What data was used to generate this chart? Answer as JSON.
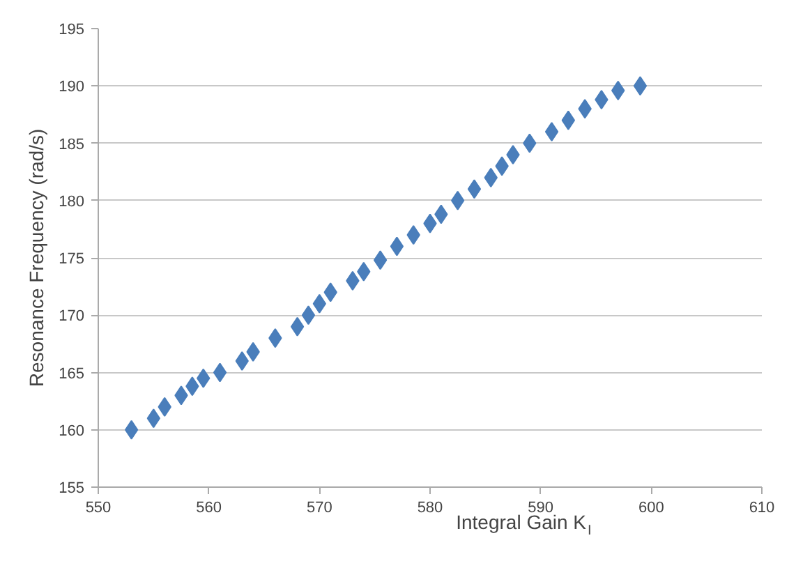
{
  "chart_data": {
    "type": "scatter",
    "xlabel": "Integral Gain K$_{I}$",
    "ylabel": "Resonance Frequency (rad/s)",
    "x": [
      553,
      555,
      556,
      557.5,
      558.5,
      559.5,
      561,
      563,
      564,
      566,
      568,
      569,
      570,
      571,
      573,
      574,
      575.5,
      577,
      578.5,
      580,
      581,
      582.5,
      584,
      585.5,
      586.5,
      587.5,
      589,
      591,
      592.5,
      594,
      595.5,
      597,
      599
    ],
    "series": [
      {
        "color": "#4a7ebb",
        "values": [
          160,
          161,
          162,
          163,
          163.8,
          164.5,
          165,
          166,
          166.8,
          168,
          169,
          170,
          171,
          172,
          173,
          173.8,
          174.8,
          176,
          177,
          178,
          178.8,
          180,
          181,
          182,
          183,
          184,
          185,
          186,
          187,
          188,
          188.8,
          189.6,
          190
        ]
      }
    ],
    "xlim": [
      550,
      610
    ],
    "ylim": [
      155,
      195
    ],
    "xticks": [
      550,
      560,
      570,
      580,
      590,
      600,
      610
    ],
    "yticks": [
      155,
      160,
      165,
      170,
      175,
      180,
      185,
      190,
      195
    ],
    "grid": "y",
    "marker": "diamond"
  }
}
